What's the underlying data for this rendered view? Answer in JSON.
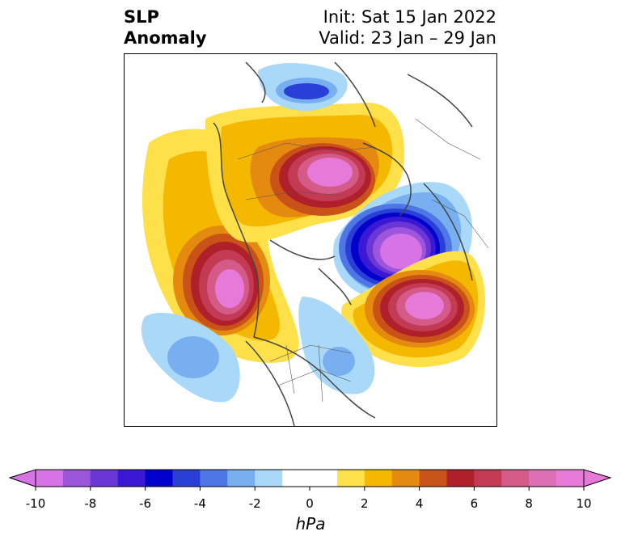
{
  "title": {
    "left_line1": "SLP",
    "left_line2": "Anomaly",
    "right_line1": "Init: Sat 15 Jan 2022",
    "right_line2": "Valid: 23 Jan – 29 Jan"
  },
  "colorbar": {
    "units": "hPa",
    "ticks": [
      "-10",
      "-8",
      "-6",
      "-4",
      "-2",
      "0",
      "2",
      "4",
      "6",
      "8",
      "10"
    ],
    "colors": [
      "#d674e6",
      "#9e55dd",
      "#6b36d6",
      "#3b18d4",
      "#0000cc",
      "#2a3fd6",
      "#4f76e6",
      "#78aff0",
      "#aad8f8",
      "#ffffff",
      "#ffffff",
      "#fde04a",
      "#f4b800",
      "#e48a10",
      "#c85218",
      "#b0202a",
      "#c33a55",
      "#d45a88",
      "#db70b6",
      "#e77ad8"
    ],
    "min_color": "#d674e6",
    "max_color": "#e77ad8"
  },
  "map": {
    "projection": "north polar stereographic",
    "anomaly_centers": [
      {
        "label": "positive",
        "max_hpa": 10,
        "region": "northeast Pacific / Gulf of Alaska"
      },
      {
        "label": "positive",
        "max_hpa": 10,
        "region": "northern Siberia"
      },
      {
        "label": "negative",
        "min_hpa": -10,
        "region": "Barents Sea / Scandinavia"
      },
      {
        "label": "positive",
        "max_hpa": 10,
        "region": "North Atlantic near British Isles"
      },
      {
        "label": "negative",
        "min_hpa": -4,
        "region": "central North Pacific"
      },
      {
        "label": "negative",
        "min_hpa": -4,
        "region": "eastern North America"
      }
    ]
  }
}
